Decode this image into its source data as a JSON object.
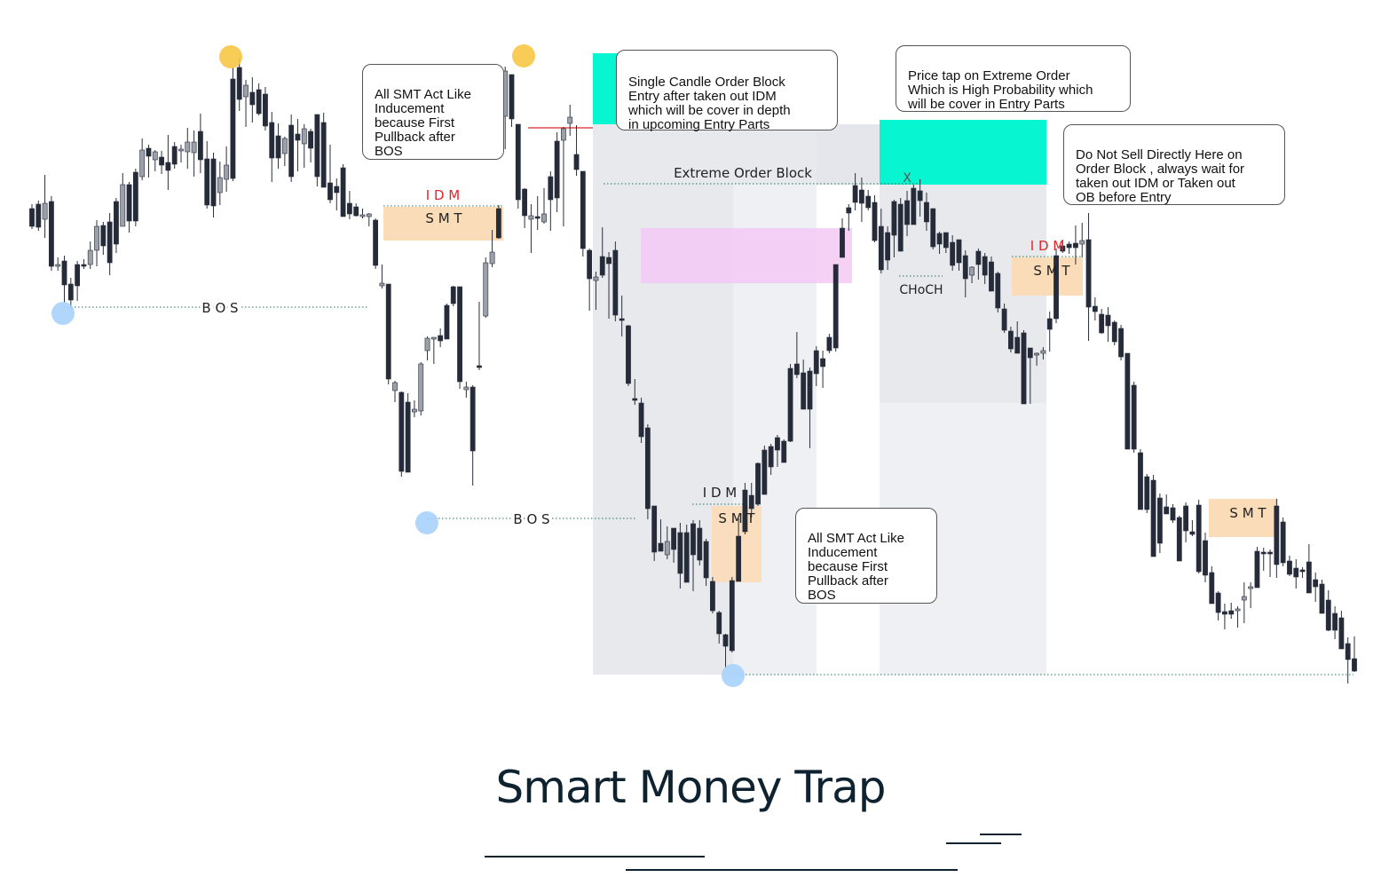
{
  "colors": {
    "candle_up": "#9ba0ab",
    "candle_down": "#262b3a",
    "gray_zone": "#dfe2e7",
    "light_zone": "#eef0f3",
    "cyan": "#07f5d0",
    "pink": "#f3c9f5",
    "smt": "#fbdcb8",
    "swing_high": "#f7c744",
    "swing_low": "#a8d2fb",
    "idm_red": "#e0262b",
    "title": "#0f2230"
  },
  "labels": {
    "bos_1": "B O S",
    "bos_2": "B O S",
    "idm_1": "I D M",
    "idm_2": "I D M",
    "idm_3": "I D M",
    "smt_1": "S M T",
    "smt_2": "S M T",
    "smt_3": "S M T",
    "smt_4": "S M T",
    "extreme_ob": "Extreme Order Block",
    "choch": "CHoCH",
    "x_mark": "X"
  },
  "callouts": {
    "smt_note_1": "All SMT Act Like\nInducement\nbecause First\nPullback after\nBOS",
    "single_candle": "Single Candle Order Block\nEntry after taken out IDM\nwhich will be cover in depth\nin upcoming Entry Parts",
    "price_tap": "Price tap on Extreme Order\nWhich is High Probability which\nwill be cover in Entry Parts",
    "do_not_sell": "Do Not Sell Directly Here on\nOrder Block , always wait for\ntaken out IDM or Taken out\nOB before Entry",
    "smt_note_2": "All SMT Act Like\nInducement\nbecause First\nPullback after\nBOS"
  },
  "footer": {
    "title": "Smart Money Trap"
  },
  "chart_data": {
    "type": "candlestick",
    "title": "",
    "candles": [
      [
        230,
        258,
        235,
        255
      ],
      [
        226,
        260,
        230,
        256
      ],
      [
        197,
        268,
        247,
        229
      ],
      [
        221,
        305,
        227,
        300
      ],
      [
        290,
        305,
        300,
        298
      ],
      [
        288,
        341,
        294,
        321
      ],
      [
        313,
        347,
        320,
        338
      ],
      [
        294,
        339,
        298,
        322
      ],
      [
        292,
        303,
        298,
        300
      ],
      [
        272,
        303,
        298,
        282
      ],
      [
        248,
        300,
        282,
        255
      ],
      [
        250,
        287,
        254,
        277
      ],
      [
        240,
        310,
        250,
        296
      ],
      [
        223,
        285,
        227,
        275
      ],
      [
        195,
        255,
        255,
        208
      ],
      [
        205,
        262,
        208,
        249
      ],
      [
        190,
        255,
        194,
        249
      ],
      [
        156,
        203,
        199,
        169
      ],
      [
        163,
        200,
        167,
        176
      ],
      [
        169,
        193,
        180,
        171
      ],
      [
        170,
        196,
        177,
        186
      ],
      [
        152,
        214,
        183,
        192
      ],
      [
        160,
        190,
        165,
        185
      ],
      [
        163,
        183,
        170,
        168
      ],
      [
        144,
        190,
        171,
        160
      ],
      [
        147,
        199,
        172,
        160
      ],
      [
        128,
        195,
        148,
        180
      ],
      [
        159,
        235,
        179,
        231
      ],
      [
        172,
        245,
        179,
        232
      ],
      [
        182,
        231,
        217,
        200
      ],
      [
        165,
        216,
        202,
        186
      ],
      [
        76,
        204,
        89,
        201
      ],
      [
        65,
        125,
        76,
        112
      ],
      [
        90,
        143,
        109,
        96
      ],
      [
        87,
        138,
        104,
        118
      ],
      [
        94,
        130,
        101,
        128
      ],
      [
        98,
        147,
        106,
        142
      ],
      [
        126,
        205,
        138,
        178
      ],
      [
        139,
        190,
        153,
        178
      ],
      [
        154,
        187,
        173,
        156
      ],
      [
        129,
        205,
        141,
        199
      ],
      [
        134,
        193,
        151,
        158
      ],
      [
        140,
        189,
        162,
        145
      ],
      [
        145,
        183,
        148,
        167
      ],
      [
        130,
        210,
        129,
        199
      ],
      [
        127,
        211,
        138,
        211
      ],
      [
        163,
        229,
        206,
        225
      ],
      [
        201,
        237,
        210,
        217
      ],
      [
        185,
        230,
        189,
        244
      ],
      [
        215,
        247,
        229,
        241
      ],
      [
        229,
        244,
        233,
        243
      ],
      [
        235,
        246,
        244,
        242
      ],
      [
        240,
        255,
        244,
        241
      ],
      [
        246,
        303,
        248,
        299
      ],
      [
        298,
        325,
        322,
        319
      ],
      [
        320,
        433,
        320,
        427
      ],
      [
        429,
        453,
        440,
        431
      ],
      [
        441,
        537,
        442,
        531
      ],
      [
        443,
        485,
        453,
        532
      ],
      [
        451,
        470,
        464,
        461
      ],
      [
        408,
        468,
        463,
        410
      ],
      [
        379,
        406,
        395,
        381
      ],
      [
        380,
        410,
        381,
        380
      ],
      [
        370,
        391,
        378,
        384
      ],
      [
        342,
        381,
        344,
        382
      ],
      [
        322,
        345,
        323,
        342
      ],
      [
        323,
        438,
        323,
        430
      ],
      [
        430,
        448,
        439,
        436
      ],
      [
        434,
        547,
        436,
        508
      ],
      [
        340,
        417,
        412,
        412
      ],
      [
        290,
        358,
        356,
        296
      ],
      [
        259,
        301,
        297,
        284
      ],
      [
        231,
        269,
        235,
        268
      ],
      [
        75,
        168,
        131,
        80
      ],
      [
        84,
        143,
        84,
        134
      ],
      [
        140,
        235,
        140,
        225
      ],
      [
        212,
        257,
        213,
        243
      ],
      [
        230,
        285,
        247,
        243
      ],
      [
        221,
        259,
        244,
        244
      ],
      [
        212,
        252,
        250,
        241
      ],
      [
        193,
        260,
        199,
        225
      ],
      [
        149,
        239,
        159,
        223
      ],
      [
        143,
        255,
        158,
        145
      ],
      [
        118,
        153,
        139,
        132
      ],
      [
        141,
        198,
        174,
        191
      ],
      [
        195,
        289,
        193,
        280
      ],
      [
        280,
        350,
        282,
        314
      ],
      [
        306,
        349,
        316,
        312
      ],
      [
        256,
        313,
        289,
        310
      ],
      [
        284,
        359,
        290,
        297
      ],
      [
        272,
        362,
        282,
        355
      ],
      [
        333,
        379,
        359,
        360
      ],
      [
        366,
        435,
        367,
        432
      ],
      [
        427,
        456,
        449,
        451
      ],
      [
        448,
        499,
        454,
        492
      ],
      [
        478,
        585,
        482,
        573
      ],
      [
        570,
        632,
        570,
        622
      ],
      [
        585,
        621,
        612,
        621
      ],
      [
        593,
        630,
        625,
        610
      ],
      [
        595,
        634,
        595,
        619
      ],
      [
        589,
        663,
        600,
        646
      ],
      [
        591,
        653,
        600,
        656
      ],
      [
        586,
        666,
        590,
        625
      ],
      [
        586,
        637,
        595,
        631
      ],
      [
        607,
        660,
        610,
        651
      ],
      [
        650,
        691,
        655,
        688
      ],
      [
        688,
        725,
        690,
        714
      ],
      [
        714,
        752,
        715,
        728
      ],
      [
        650,
        735,
        654,
        733
      ],
      [
        584,
        652,
        604,
        655
      ],
      [
        544,
        602,
        552,
        599
      ],
      [
        544,
        583,
        558,
        573
      ],
      [
        521,
        570,
        522,
        568
      ],
      [
        502,
        552,
        507,
        557
      ],
      [
        500,
        535,
        503,
        526
      ],
      [
        490,
        526,
        493,
        507
      ],
      [
        495,
        521,
        497,
        521
      ],
      [
        410,
        498,
        415,
        497
      ],
      [
        374,
        426,
        410,
        422
      ],
      [
        405,
        461,
        420,
        461
      ],
      [
        414,
        505,
        418,
        461
      ],
      [
        390,
        435,
        395,
        421
      ],
      [
        395,
        437,
        404,
        413
      ],
      [
        376,
        398,
        380,
        395
      ],
      [
        298,
        396,
        298,
        392
      ],
      [
        246,
        288,
        257,
        290
      ],
      [
        230,
        260,
        234,
        240
      ],
      [
        195,
        237,
        209,
        228
      ],
      [
        200,
        250,
        214,
        229
      ],
      [
        214,
        237,
        221,
        234
      ],
      [
        220,
        273,
        228,
        271
      ],
      [
        235,
        308,
        255,
        304
      ],
      [
        255,
        304,
        262,
        293
      ],
      [
        225,
        290,
        227,
        265
      ],
      [
        223,
        282,
        230,
        283
      ],
      [
        215,
        266,
        226,
        253
      ],
      [
        208,
        246,
        212,
        253
      ],
      [
        202,
        244,
        215,
        226
      ],
      [
        217,
        260,
        228,
        250
      ],
      [
        236,
        281,
        235,
        278
      ],
      [
        261,
        286,
        263,
        275
      ],
      [
        262,
        285,
        262,
        279
      ],
      [
        265,
        305,
        273,
        299
      ],
      [
        270,
        305,
        270,
        296
      ],
      [
        282,
        335,
        288,
        314
      ],
      [
        300,
        319,
        310,
        301
      ],
      [
        280,
        315,
        283,
        298
      ],
      [
        285,
        320,
        289,
        310
      ],
      [
        289,
        324,
        295,
        328
      ],
      [
        306,
        352,
        308,
        347
      ],
      [
        342,
        375,
        348,
        372
      ],
      [
        368,
        397,
        373,
        393
      ],
      [
        362,
        398,
        380,
        398
      ],
      [
        372,
        453,
        375,
        455
      ],
      [
        393,
        455,
        392,
        403
      ],
      [
        397,
        412,
        399,
        398
      ],
      [
        391,
        405,
        398,
        395
      ],
      [
        351,
        396,
        359,
        371
      ],
      [
        280,
        364,
        288,
        359
      ],
      [
        270,
        285,
        277,
        283
      ],
      [
        272,
        286,
        275,
        279
      ],
      [
        254,
        298,
        274,
        279
      ],
      [
        251,
        290,
        275,
        271
      ],
      [
        240,
        384,
        270,
        346
      ],
      [
        335,
        361,
        345,
        351
      ],
      [
        348,
        376,
        354,
        375
      ],
      [
        346,
        385,
        355,
        367
      ],
      [
        361,
        389,
        363,
        385
      ],
      [
        366,
        406,
        370,
        402
      ],
      [
        398,
        433,
        398,
        506
      ],
      [
        430,
        510,
        434,
        506
      ],
      [
        506,
        573,
        510,
        574
      ],
      [
        534,
        578,
        537,
        574
      ],
      [
        535,
        608,
        541,
        627
      ],
      [
        556,
        623,
        561,
        612
      ],
      [
        557,
        578,
        571,
        579
      ],
      [
        568,
        589,
        572,
        586
      ],
      [
        581,
        622,
        583,
        632
      ],
      [
        566,
        611,
        570,
        598
      ],
      [
        586,
        604,
        599,
        602
      ],
      [
        563,
        646,
        569,
        644
      ],
      [
        600,
        656,
        609,
        648
      ],
      [
        638,
        671,
        645,
        680
      ],
      [
        666,
        699,
        668,
        690
      ],
      [
        680,
        709,
        689,
        692
      ],
      [
        679,
        697,
        688,
        692
      ],
      [
        683,
        707,
        688,
        686
      ],
      [
        656,
        702,
        676,
        672
      ],
      [
        656,
        685,
        662,
        661
      ],
      [
        616,
        648,
        621,
        662
      ],
      [
        617,
        643,
        622,
        624
      ],
      [
        619,
        650,
        622,
        623
      ],
      [
        562,
        651,
        570,
        636
      ],
      [
        583,
        638,
        588,
        634
      ],
      [
        626,
        649,
        632,
        647
      ],
      [
        630,
        663,
        640,
        650
      ],
      [
        639,
        651,
        642,
        644
      ],
      [
        613,
        668,
        633,
        668
      ],
      [
        645,
        678,
        653,
        661
      ],
      [
        653,
        684,
        658,
        691
      ],
      [
        665,
        711,
        676,
        710
      ],
      [
        683,
        720,
        691,
        710
      ],
      [
        688,
        722,
        696,
        731
      ],
      [
        718,
        770,
        725,
        743
      ],
      [
        717,
        757,
        742,
        756
      ]
    ],
    "annotations": [
      "BOS",
      "IDM",
      "SMT",
      "Extreme Order Block",
      "CHoCH",
      "X"
    ]
  }
}
